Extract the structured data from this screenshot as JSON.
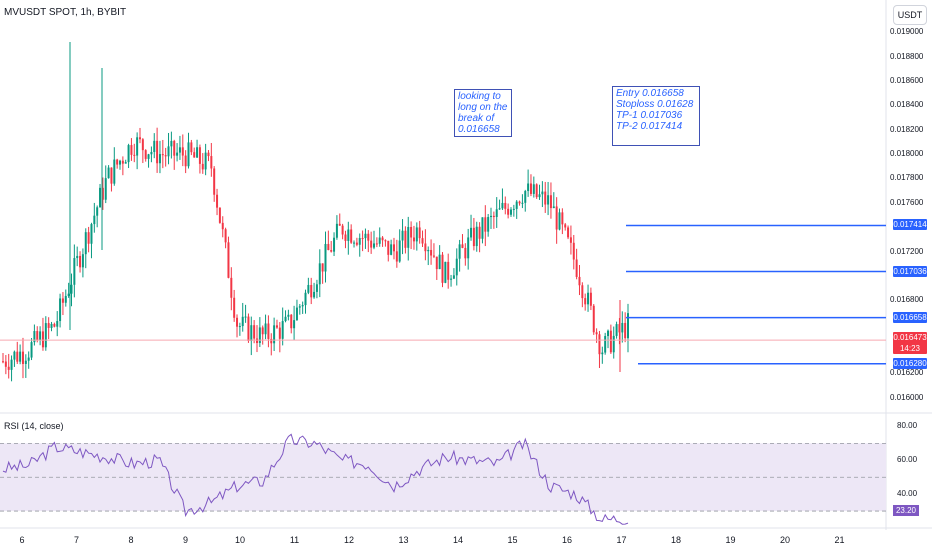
{
  "header": {
    "title": "MVUSDT SPOT, 1h, BYBIT",
    "currency_button": "USDT"
  },
  "price_axis": [
    "0.019000",
    "0.018800",
    "0.018600",
    "0.018400",
    "0.018200",
    "0.018000",
    "0.017800",
    "0.017600",
    "0.017200",
    "0.016800",
    "0.016200",
    "0.016000"
  ],
  "levels": [
    {
      "label": "0.017414",
      "price": 0.017414
    },
    {
      "label": "0.017036",
      "price": 0.017036
    },
    {
      "label": "0.016658",
      "price": 0.016658
    },
    {
      "label": "0.016280",
      "price": 0.01628
    }
  ],
  "current_price": {
    "price_label": "0.016473",
    "countdown": "14:23"
  },
  "annotations": [
    {
      "text": "looking to\nlong on the\nbreak of\n0.016658"
    },
    {
      "text": "Entry 0.016658\nStoploss 0.01628\nTP-1 0.017036\nTP-2 0.017414"
    }
  ],
  "rsi": {
    "label": "RSI (14, close)",
    "axis": [
      "80.00",
      "60.00",
      "40.00"
    ],
    "value_label": "23.20"
  },
  "time_axis": [
    "6",
    "7",
    "8",
    "9",
    "10",
    "11",
    "12",
    "13",
    "14",
    "15",
    "16",
    "17",
    "18",
    "19",
    "20",
    "21"
  ],
  "colors": {
    "up": "#089981",
    "down": "#f23645",
    "level": "#2962ff",
    "rsi_line": "#7e57c2",
    "rsi_band": "#ede7f6"
  },
  "chart_data": {
    "type": "candlestick",
    "title": "MVUSDT SPOT, 1h, BYBIT",
    "y_range": [
      0.0159,
      0.0191
    ],
    "x_labels": [
      "6",
      "7",
      "8",
      "9",
      "10",
      "11",
      "12",
      "13",
      "14",
      "15",
      "16",
      "17",
      "18",
      "19",
      "20",
      "21"
    ],
    "approx_close_path": [
      0.0163,
      0.0164,
      0.0166,
      0.0172,
      0.0178,
      0.0181,
      0.018,
      0.018,
      0.0179,
      0.0166,
      0.0165,
      0.0166,
      0.017,
      0.0174,
      0.0173,
      0.0172,
      0.0174,
      0.017,
      0.0173,
      0.0175,
      0.0177,
      0.0176,
      0.0171,
      0.0164,
      0.0166
    ],
    "horizontal_levels": [
      0.017414,
      0.017036,
      0.016658,
      0.01628
    ],
    "rsi_approx_path": [
      55,
      57,
      68,
      65,
      62,
      58,
      60,
      30,
      35,
      45,
      48,
      72,
      70,
      60,
      58,
      45,
      55,
      62,
      60,
      58,
      70,
      45,
      40,
      25,
      26
    ]
  }
}
